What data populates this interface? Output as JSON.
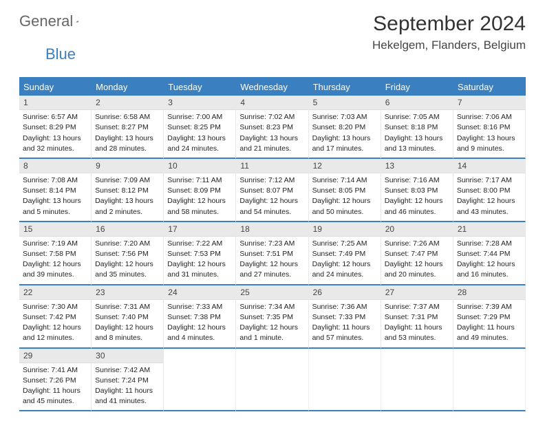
{
  "brand": {
    "part1": "General",
    "part2": "Blue"
  },
  "header": {
    "month_title": "September 2024",
    "location": "Hekelgem, Flanders, Belgium"
  },
  "colors": {
    "accent": "#3a7fbf",
    "dayhead_bg": "#3a7fbf",
    "dayhead_fg": "#ffffff",
    "daynum_bg": "#e9e9e9",
    "text": "#222222"
  },
  "calendar": {
    "day_names": [
      "Sunday",
      "Monday",
      "Tuesday",
      "Wednesday",
      "Thursday",
      "Friday",
      "Saturday"
    ],
    "weeks": [
      [
        {
          "n": "1",
          "sunrise": "Sunrise: 6:57 AM",
          "sunset": "Sunset: 8:29 PM",
          "day1": "Daylight: 13 hours",
          "day2": "and 32 minutes."
        },
        {
          "n": "2",
          "sunrise": "Sunrise: 6:58 AM",
          "sunset": "Sunset: 8:27 PM",
          "day1": "Daylight: 13 hours",
          "day2": "and 28 minutes."
        },
        {
          "n": "3",
          "sunrise": "Sunrise: 7:00 AM",
          "sunset": "Sunset: 8:25 PM",
          "day1": "Daylight: 13 hours",
          "day2": "and 24 minutes."
        },
        {
          "n": "4",
          "sunrise": "Sunrise: 7:02 AM",
          "sunset": "Sunset: 8:23 PM",
          "day1": "Daylight: 13 hours",
          "day2": "and 21 minutes."
        },
        {
          "n": "5",
          "sunrise": "Sunrise: 7:03 AM",
          "sunset": "Sunset: 8:20 PM",
          "day1": "Daylight: 13 hours",
          "day2": "and 17 minutes."
        },
        {
          "n": "6",
          "sunrise": "Sunrise: 7:05 AM",
          "sunset": "Sunset: 8:18 PM",
          "day1": "Daylight: 13 hours",
          "day2": "and 13 minutes."
        },
        {
          "n": "7",
          "sunrise": "Sunrise: 7:06 AM",
          "sunset": "Sunset: 8:16 PM",
          "day1": "Daylight: 13 hours",
          "day2": "and 9 minutes."
        }
      ],
      [
        {
          "n": "8",
          "sunrise": "Sunrise: 7:08 AM",
          "sunset": "Sunset: 8:14 PM",
          "day1": "Daylight: 13 hours",
          "day2": "and 5 minutes."
        },
        {
          "n": "9",
          "sunrise": "Sunrise: 7:09 AM",
          "sunset": "Sunset: 8:12 PM",
          "day1": "Daylight: 13 hours",
          "day2": "and 2 minutes."
        },
        {
          "n": "10",
          "sunrise": "Sunrise: 7:11 AM",
          "sunset": "Sunset: 8:09 PM",
          "day1": "Daylight: 12 hours",
          "day2": "and 58 minutes."
        },
        {
          "n": "11",
          "sunrise": "Sunrise: 7:12 AM",
          "sunset": "Sunset: 8:07 PM",
          "day1": "Daylight: 12 hours",
          "day2": "and 54 minutes."
        },
        {
          "n": "12",
          "sunrise": "Sunrise: 7:14 AM",
          "sunset": "Sunset: 8:05 PM",
          "day1": "Daylight: 12 hours",
          "day2": "and 50 minutes."
        },
        {
          "n": "13",
          "sunrise": "Sunrise: 7:16 AM",
          "sunset": "Sunset: 8:03 PM",
          "day1": "Daylight: 12 hours",
          "day2": "and 46 minutes."
        },
        {
          "n": "14",
          "sunrise": "Sunrise: 7:17 AM",
          "sunset": "Sunset: 8:00 PM",
          "day1": "Daylight: 12 hours",
          "day2": "and 43 minutes."
        }
      ],
      [
        {
          "n": "15",
          "sunrise": "Sunrise: 7:19 AM",
          "sunset": "Sunset: 7:58 PM",
          "day1": "Daylight: 12 hours",
          "day2": "and 39 minutes."
        },
        {
          "n": "16",
          "sunrise": "Sunrise: 7:20 AM",
          "sunset": "Sunset: 7:56 PM",
          "day1": "Daylight: 12 hours",
          "day2": "and 35 minutes."
        },
        {
          "n": "17",
          "sunrise": "Sunrise: 7:22 AM",
          "sunset": "Sunset: 7:53 PM",
          "day1": "Daylight: 12 hours",
          "day2": "and 31 minutes."
        },
        {
          "n": "18",
          "sunrise": "Sunrise: 7:23 AM",
          "sunset": "Sunset: 7:51 PM",
          "day1": "Daylight: 12 hours",
          "day2": "and 27 minutes."
        },
        {
          "n": "19",
          "sunrise": "Sunrise: 7:25 AM",
          "sunset": "Sunset: 7:49 PM",
          "day1": "Daylight: 12 hours",
          "day2": "and 24 minutes."
        },
        {
          "n": "20",
          "sunrise": "Sunrise: 7:26 AM",
          "sunset": "Sunset: 7:47 PM",
          "day1": "Daylight: 12 hours",
          "day2": "and 20 minutes."
        },
        {
          "n": "21",
          "sunrise": "Sunrise: 7:28 AM",
          "sunset": "Sunset: 7:44 PM",
          "day1": "Daylight: 12 hours",
          "day2": "and 16 minutes."
        }
      ],
      [
        {
          "n": "22",
          "sunrise": "Sunrise: 7:30 AM",
          "sunset": "Sunset: 7:42 PM",
          "day1": "Daylight: 12 hours",
          "day2": "and 12 minutes."
        },
        {
          "n": "23",
          "sunrise": "Sunrise: 7:31 AM",
          "sunset": "Sunset: 7:40 PM",
          "day1": "Daylight: 12 hours",
          "day2": "and 8 minutes."
        },
        {
          "n": "24",
          "sunrise": "Sunrise: 7:33 AM",
          "sunset": "Sunset: 7:38 PM",
          "day1": "Daylight: 12 hours",
          "day2": "and 4 minutes."
        },
        {
          "n": "25",
          "sunrise": "Sunrise: 7:34 AM",
          "sunset": "Sunset: 7:35 PM",
          "day1": "Daylight: 12 hours",
          "day2": "and 1 minute."
        },
        {
          "n": "26",
          "sunrise": "Sunrise: 7:36 AM",
          "sunset": "Sunset: 7:33 PM",
          "day1": "Daylight: 11 hours",
          "day2": "and 57 minutes."
        },
        {
          "n": "27",
          "sunrise": "Sunrise: 7:37 AM",
          "sunset": "Sunset: 7:31 PM",
          "day1": "Daylight: 11 hours",
          "day2": "and 53 minutes."
        },
        {
          "n": "28",
          "sunrise": "Sunrise: 7:39 AM",
          "sunset": "Sunset: 7:29 PM",
          "day1": "Daylight: 11 hours",
          "day2": "and 49 minutes."
        }
      ],
      [
        {
          "n": "29",
          "sunrise": "Sunrise: 7:41 AM",
          "sunset": "Sunset: 7:26 PM",
          "day1": "Daylight: 11 hours",
          "day2": "and 45 minutes."
        },
        {
          "n": "30",
          "sunrise": "Sunrise: 7:42 AM",
          "sunset": "Sunset: 7:24 PM",
          "day1": "Daylight: 11 hours",
          "day2": "and 41 minutes."
        },
        null,
        null,
        null,
        null,
        null
      ]
    ]
  }
}
